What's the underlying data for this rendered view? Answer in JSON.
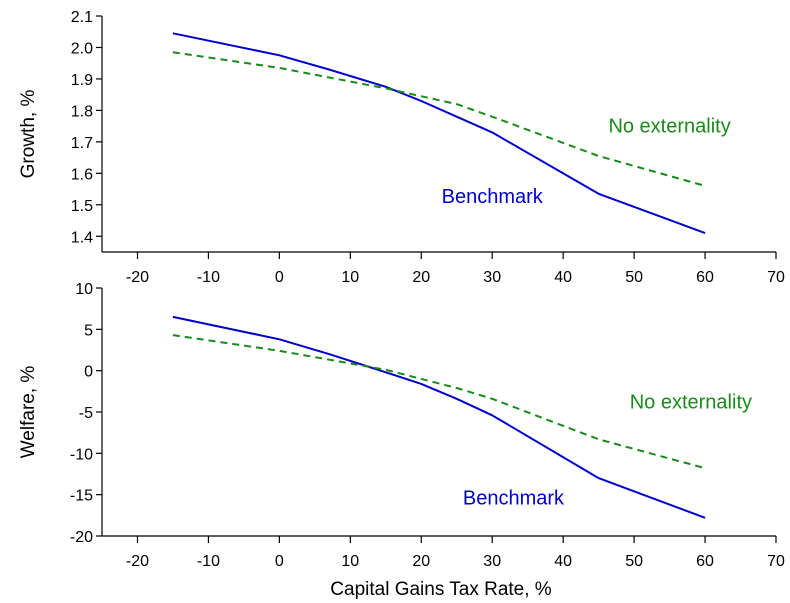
{
  "colors": {
    "benchmark": "#0000cc",
    "no_externality": "#1a8a1a",
    "axis": "#000000",
    "background": "#ffffff"
  },
  "chart_data": [
    {
      "type": "line",
      "title": "",
      "xlabel": "",
      "ylabel": "Growth, %",
      "xlim": [
        -25,
        70
      ],
      "ylim": [
        1.35,
        2.1
      ],
      "xticks": [
        -20,
        -10,
        0,
        10,
        20,
        30,
        40,
        50,
        60,
        70
      ],
      "xtick_labels": [
        "-20",
        "-10",
        "0",
        "10",
        "20",
        "30",
        "40",
        "50",
        "60",
        "70"
      ],
      "yticks": [
        1.4,
        1.5,
        1.6,
        1.7,
        1.8,
        1.9,
        2.0,
        2.1
      ],
      "ytick_labels": [
        "1.4",
        "1.5",
        "1.6",
        "1.7",
        "1.8",
        "1.9",
        "2.0",
        "2.1"
      ],
      "grid": false,
      "series": [
        {
          "name": "Benchmark",
          "style": "solid",
          "x": [
            -15,
            0,
            7,
            15,
            20,
            25,
            30,
            45,
            60
          ],
          "y": [
            2.045,
            1.975,
            1.93,
            1.875,
            1.83,
            1.78,
            1.73,
            1.535,
            1.41
          ]
        },
        {
          "name": "No externality",
          "style": "dashed",
          "x": [
            -15,
            0,
            15,
            25,
            30,
            45,
            60
          ],
          "y": [
            1.985,
            1.935,
            1.87,
            1.82,
            1.78,
            1.655,
            1.56
          ]
        }
      ],
      "annotations": [
        {
          "text": "No externality",
          "series": "No externality",
          "x": 55,
          "y": 1.73
        },
        {
          "text": "Benchmark",
          "series": "Benchmark",
          "x": 30,
          "y": 1.505
        }
      ]
    },
    {
      "type": "line",
      "title": "",
      "xlabel": "Capital Gains Tax Rate, %",
      "ylabel": "Welfare, %",
      "xlim": [
        -25,
        70
      ],
      "ylim": [
        -20,
        10
      ],
      "xticks": [
        -20,
        -10,
        0,
        10,
        20,
        30,
        40,
        50,
        60,
        70
      ],
      "xtick_labels": [
        "-20",
        "-10",
        "0",
        "10",
        "20",
        "30",
        "40",
        "50",
        "60",
        "70"
      ],
      "yticks": [
        -20,
        -15,
        -10,
        -5,
        0,
        5,
        10
      ],
      "ytick_labels": [
        "-20",
        "-15",
        "-10",
        "-5",
        "0",
        "5",
        "10"
      ],
      "grid": false,
      "series": [
        {
          "name": "Benchmark",
          "style": "solid",
          "x": [
            -15,
            0,
            7,
            15,
            20,
            25,
            30,
            45,
            60
          ],
          "y": [
            6.5,
            3.8,
            2.0,
            -0.2,
            -1.6,
            -3.4,
            -5.4,
            -13.0,
            -17.8
          ]
        },
        {
          "name": "No externality",
          "style": "dashed",
          "x": [
            -15,
            0,
            15,
            25,
            30,
            45,
            60
          ],
          "y": [
            4.3,
            2.4,
            0.1,
            -2.1,
            -3.4,
            -8.3,
            -11.8
          ]
        }
      ],
      "annotations": [
        {
          "text": "No externality",
          "series": "No externality",
          "x": 58,
          "y": -4.6
        },
        {
          "text": "Benchmark",
          "series": "Benchmark",
          "x": 33,
          "y": -16.2
        }
      ]
    }
  ]
}
